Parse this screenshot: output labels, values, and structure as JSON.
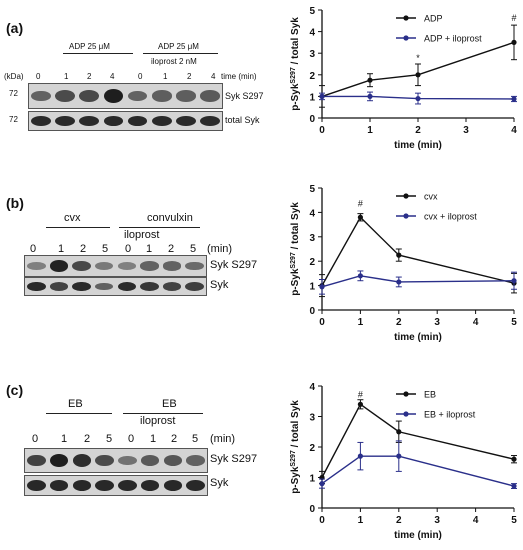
{
  "panels": [
    {
      "label": "(a)",
      "blot": {
        "group1_label": "ADP 25 μM",
        "group2_label_line1": "ADP 25 μM",
        "group2_label_line2": "iloprost 2 nM",
        "kda_label": "(kDa)",
        "lanes": [
          "0",
          "1",
          "2",
          "4",
          "0",
          "1",
          "2",
          "4"
        ],
        "time_label": "time (min)",
        "marker1": "72",
        "marker2": "72",
        "row1_label": "Syk S297",
        "row2_label": "total Syk",
        "row1_intensity": [
          0.55,
          0.7,
          0.72,
          0.98,
          0.55,
          0.58,
          0.58,
          0.6
        ],
        "row2_intensity": [
          0.9,
          0.9,
          0.9,
          0.9,
          0.9,
          0.9,
          0.9,
          0.9
        ]
      }
    },
    {
      "label": "(b)",
      "blot": {
        "group1_label": "cvx",
        "group2_label_line1": "convulxin",
        "group2_label_line2": "iloprost",
        "kda_label": "",
        "lanes": [
          "0",
          "1",
          "2",
          "5",
          "0",
          "1",
          "2",
          "5"
        ],
        "time_label": "(min)",
        "marker1": "",
        "marker2": "",
        "row1_label": "Syk S297",
        "row2_label": "Syk",
        "row1_intensity": [
          0.35,
          0.95,
          0.72,
          0.4,
          0.35,
          0.55,
          0.55,
          0.5
        ],
        "row2_intensity": [
          0.92,
          0.75,
          0.9,
          0.55,
          0.9,
          0.82,
          0.75,
          0.78
        ]
      }
    },
    {
      "label": "(c)",
      "blot": {
        "group1_label": "EB",
        "group2_label_line1": "EB",
        "group2_label_line2": "iloprost",
        "kda_label": "",
        "lanes": [
          "0",
          "1",
          "2",
          "5",
          "0",
          "1",
          "2",
          "5"
        ],
        "time_label": "(min)",
        "marker1": "",
        "marker2": "",
        "row1_label": "Syk S297",
        "row2_label": "Syk",
        "row1_intensity": [
          0.75,
          0.98,
          0.88,
          0.7,
          0.45,
          0.6,
          0.62,
          0.55
        ],
        "row2_intensity": [
          0.92,
          0.92,
          0.92,
          0.92,
          0.92,
          0.92,
          0.92,
          0.92
        ]
      }
    }
  ],
  "chart_data": [
    {
      "type": "line",
      "xlabel": "time (min)",
      "ylabel_prefix": "p-Syk",
      "ylabel_sup": "S297",
      "ylabel_suffix": " / total Syk",
      "xlim": [
        0,
        4
      ],
      "ylim": [
        0,
        5
      ],
      "xticks": [
        0,
        1,
        2,
        3,
        4
      ],
      "yticks": [
        0,
        1,
        2,
        3,
        4,
        5
      ],
      "legend_position": "top-right",
      "series": [
        {
          "name": "ADP",
          "color": "#111111",
          "x": [
            0,
            1,
            2,
            4
          ],
          "y": [
            1.0,
            1.75,
            2.0,
            3.5
          ],
          "err": [
            0.5,
            0.3,
            0.5,
            0.8
          ]
        },
        {
          "name": "ADP + iloprost",
          "color": "#2a2f8a",
          "x": [
            0,
            1,
            2,
            4
          ],
          "y": [
            1.0,
            1.0,
            0.9,
            0.88
          ],
          "err": [
            0.15,
            0.2,
            0.25,
            0.12
          ]
        }
      ],
      "annotations": [
        {
          "text": "*",
          "x": 2,
          "y": 2.65
        },
        {
          "text": "#",
          "x": 4,
          "y": 4.5
        }
      ]
    },
    {
      "type": "line",
      "xlabel": "time (min)",
      "ylabel_prefix": "p-Syk",
      "ylabel_sup": "S297",
      "ylabel_suffix": " / total Syk",
      "xlim": [
        0,
        5
      ],
      "ylim": [
        0,
        5
      ],
      "xticks": [
        0,
        1,
        2,
        3,
        4,
        5
      ],
      "yticks": [
        0,
        1,
        2,
        3,
        4,
        5
      ],
      "legend_position": "top-right",
      "series": [
        {
          "name": "cvx",
          "color": "#111111",
          "x": [
            0,
            1,
            2,
            5
          ],
          "y": [
            1.0,
            3.8,
            2.25,
            1.1
          ],
          "err": [
            0.45,
            0.15,
            0.25,
            0.4
          ]
        },
        {
          "name": "cvx + iloprost",
          "color": "#2a2f8a",
          "x": [
            0,
            1,
            2,
            5
          ],
          "y": [
            0.95,
            1.4,
            1.15,
            1.2
          ],
          "err": [
            0.3,
            0.2,
            0.2,
            0.35
          ]
        }
      ],
      "annotations": [
        {
          "text": "#",
          "x": 1,
          "y": 4.25
        }
      ]
    },
    {
      "type": "line",
      "xlabel": "time (min)",
      "ylabel_prefix": "p-Syk",
      "ylabel_sup": "S297",
      "ylabel_suffix": " / total Syk",
      "xlim": [
        0,
        5
      ],
      "ylim": [
        0,
        4
      ],
      "xticks": [
        0,
        1,
        2,
        3,
        4,
        5
      ],
      "yticks": [
        0,
        1,
        2,
        3,
        4
      ],
      "legend_position": "top-right",
      "series": [
        {
          "name": "EB",
          "color": "#111111",
          "x": [
            0,
            1,
            2,
            5
          ],
          "y": [
            1.0,
            3.4,
            2.5,
            1.6
          ],
          "err": [
            0.2,
            0.15,
            0.35,
            0.12
          ]
        },
        {
          "name": "EB + iloprost",
          "color": "#2a2f8a",
          "x": [
            0,
            1,
            2,
            5
          ],
          "y": [
            0.8,
            1.7,
            1.7,
            0.72
          ],
          "err": [
            0.15,
            0.45,
            0.5,
            0.08
          ]
        }
      ],
      "annotations": [
        {
          "text": "#",
          "x": 1,
          "y": 3.62
        }
      ]
    }
  ]
}
